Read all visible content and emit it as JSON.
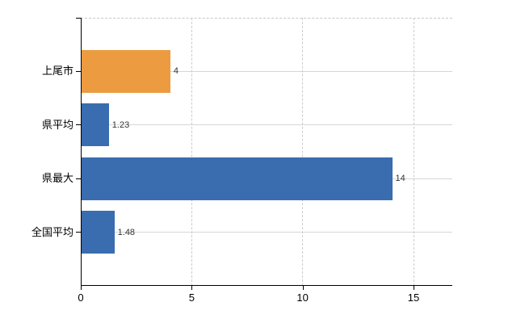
{
  "chart_data": {
    "type": "bar",
    "orientation": "horizontal",
    "title": "",
    "xlabel": "",
    "ylabel": "",
    "categories": [
      "上尾市",
      "県平均",
      "県最大",
      "全国平均"
    ],
    "values": [
      4,
      1.23,
      14,
      1.48
    ],
    "value_labels": [
      "4",
      "1.23",
      "14",
      "1.48"
    ],
    "bar_colors": [
      "#ec9b41",
      "#3a6cb0",
      "#3a6cb0",
      "#3a6cb0"
    ],
    "x_ticks": [
      0,
      5,
      10,
      15
    ],
    "x_tick_labels": [
      "0",
      "5",
      "10",
      "15"
    ],
    "xlim": [
      0,
      16.75
    ],
    "grid": {
      "vertical_style": "dashed",
      "horizontal_style": "solid",
      "top_border_style": "dashed"
    },
    "legend": "none"
  },
  "colors": {
    "bar_orange": "#ec9b41",
    "bar_blue": "#3a6cb0",
    "axis": "#000000",
    "grid_dashed": "#cccccc",
    "grid_solid": "#d4d9d2",
    "value_label_text": "#333333",
    "category_label_text": "#000000",
    "background": "#ffffff"
  }
}
